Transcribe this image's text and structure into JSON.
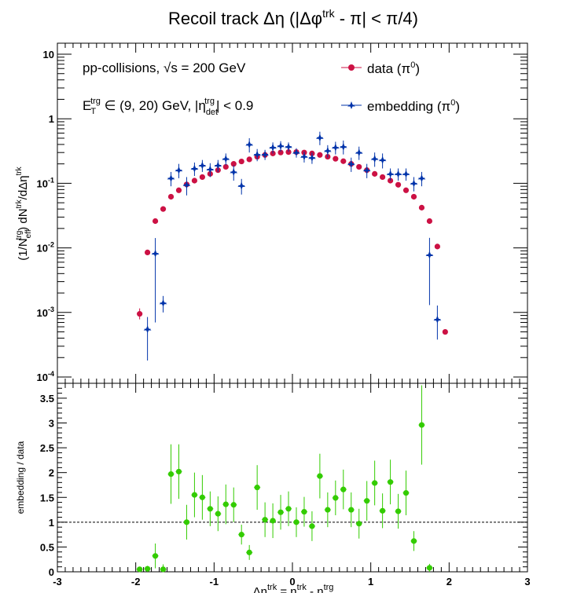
{
  "chart_data": [
    {
      "type": "scatter",
      "title": "Recoil track Δη (|Δφ^trk - π| < π/4)",
      "ylabel": "(1/N_eff^trg) dN^trk/dΔη^trk",
      "y_scale": "log",
      "xlim": [
        -3,
        3
      ],
      "ylim": [
        0.0001,
        15
      ],
      "y_ticks": [
        {
          "value": 10,
          "label": "10"
        },
        {
          "value": 1,
          "label": "1"
        },
        {
          "value": 0.1,
          "label": "10⁻¹"
        },
        {
          "value": 0.01,
          "label": "10⁻²"
        },
        {
          "value": 0.001,
          "label": "10⁻³"
        },
        {
          "value": 0.0001,
          "label": "10⁻⁴"
        }
      ],
      "annotations": {
        "line1": "pp-collisions, √s = 200 GeV",
        "line2": "E_T^trg ∈ (9, 20) GeV, |η_det^trg| < 0.9"
      },
      "legend": {
        "position": "top-right"
      },
      "series": [
        {
          "name": "data (π⁰)",
          "color": "#cc1144",
          "marker": "circle",
          "x": [
            -1.95,
            -1.85,
            -1.75,
            -1.65,
            -1.55,
            -1.45,
            -1.35,
            -1.25,
            -1.15,
            -1.05,
            -0.95,
            -0.85,
            -0.75,
            -0.65,
            -0.55,
            -0.45,
            -0.35,
            -0.25,
            -0.15,
            -0.05,
            0.05,
            0.15,
            0.25,
            0.35,
            0.45,
            0.55,
            0.65,
            0.75,
            0.85,
            0.95,
            1.05,
            1.15,
            1.25,
            1.35,
            1.45,
            1.55,
            1.65,
            1.75,
            1.85,
            1.95
          ],
          "y": [
            0.00095,
            0.0085,
            0.026,
            0.04,
            0.062,
            0.078,
            0.096,
            0.11,
            0.125,
            0.14,
            0.16,
            0.18,
            0.2,
            0.218,
            0.235,
            0.258,
            0.275,
            0.29,
            0.3,
            0.305,
            0.305,
            0.3,
            0.29,
            0.275,
            0.258,
            0.24,
            0.22,
            0.2,
            0.18,
            0.16,
            0.14,
            0.125,
            0.11,
            0.095,
            0.078,
            0.062,
            0.042,
            0.026,
            0.0105,
            0.0005
          ]
        },
        {
          "name": "embedding (π⁰)",
          "color": "#0033aa",
          "marker": "star",
          "x": [
            -1.85,
            -1.75,
            -1.65,
            -1.55,
            -1.45,
            -1.35,
            -1.25,
            -1.15,
            -1.05,
            -0.95,
            -0.85,
            -0.75,
            -0.65,
            -0.55,
            -0.45,
            -0.35,
            -0.25,
            -0.15,
            -0.05,
            0.05,
            0.15,
            0.25,
            0.35,
            0.45,
            0.55,
            0.65,
            0.75,
            0.85,
            0.95,
            1.05,
            1.15,
            1.25,
            1.35,
            1.45,
            1.55,
            1.65,
            1.75,
            1.85
          ],
          "y": [
            0.00055,
            0.0082,
            0.0014,
            0.12,
            0.16,
            0.095,
            0.17,
            0.19,
            0.165,
            0.19,
            0.24,
            0.15,
            0.092,
            0.4,
            0.28,
            0.28,
            0.36,
            0.38,
            0.37,
            0.3,
            0.26,
            0.25,
            0.51,
            0.32,
            0.36,
            0.37,
            0.2,
            0.3,
            0.16,
            0.24,
            0.23,
            0.14,
            0.14,
            0.14,
            0.1,
            0.12,
            0.0078,
            0.00078
          ],
          "yerr_low": [
            0.00037,
            0.0075,
            0.0004,
            0.03,
            0.04,
            0.03,
            0.04,
            0.04,
            0.04,
            0.04,
            0.05,
            0.04,
            0.025,
            0.1,
            0.06,
            0.05,
            0.07,
            0.07,
            0.06,
            0.05,
            0.05,
            0.05,
            0.12,
            0.07,
            0.08,
            0.09,
            0.05,
            0.07,
            0.04,
            0.06,
            0.06,
            0.03,
            0.03,
            0.03,
            0.025,
            0.03,
            0.0065,
            0.0004
          ],
          "yerr_high": [
            0.0003,
            0.006,
            0.0004,
            0.03,
            0.04,
            0.03,
            0.04,
            0.04,
            0.04,
            0.04,
            0.05,
            0.04,
            0.025,
            0.1,
            0.06,
            0.05,
            0.07,
            0.07,
            0.06,
            0.05,
            0.05,
            0.05,
            0.12,
            0.07,
            0.08,
            0.09,
            0.05,
            0.07,
            0.04,
            0.06,
            0.06,
            0.03,
            0.03,
            0.03,
            0.025,
            0.03,
            0.0065,
            0.0005
          ]
        }
      ]
    },
    {
      "type": "scatter",
      "xlabel": "Δη^trk = η^trk - η^trg",
      "ylabel": "embedding / data",
      "xlim": [
        -3,
        3
      ],
      "ylim": [
        0,
        3.8
      ],
      "x_ticks": [
        -3,
        -2,
        -1,
        0,
        1,
        2,
        3
      ],
      "y_ticks": [
        0,
        0.5,
        1,
        1.5,
        2,
        2.5,
        3,
        3.5
      ],
      "reference_line": 1,
      "series": [
        {
          "name": "ratio",
          "color": "#33cc00",
          "marker": "circle",
          "x": [
            -1.95,
            -1.85,
            -1.75,
            -1.65,
            -1.55,
            -1.45,
            -1.35,
            -1.25,
            -1.15,
            -1.05,
            -0.95,
            -0.85,
            -0.75,
            -0.65,
            -0.55,
            -0.45,
            -0.35,
            -0.25,
            -0.15,
            -0.05,
            0.05,
            0.15,
            0.25,
            0.35,
            0.45,
            0.55,
            0.65,
            0.75,
            0.85,
            0.95,
            1.05,
            1.15,
            1.25,
            1.35,
            1.45,
            1.55,
            1.65,
            1.75
          ],
          "y": [
            0.05,
            0.06,
            0.32,
            0.05,
            1.97,
            2.02,
            1.0,
            1.55,
            1.5,
            1.27,
            1.17,
            1.36,
            1.35,
            0.75,
            0.39,
            1.7,
            1.05,
            1.03,
            1.2,
            1.27,
            1.0,
            1.21,
            0.92,
            1.93,
            1.25,
            1.49,
            1.66,
            1.25,
            0.97,
            1.43,
            1.79,
            1.23,
            1.81,
            1.22,
            1.59,
            0.62,
            2.96,
            0.08
          ],
          "yerr": [
            0.05,
            0.06,
            0.25,
            0.1,
            0.6,
            0.55,
            0.35,
            0.45,
            0.45,
            0.35,
            0.35,
            0.4,
            0.35,
            0.2,
            0.15,
            0.45,
            0.35,
            0.35,
            0.35,
            0.35,
            0.3,
            0.3,
            0.3,
            0.45,
            0.35,
            0.35,
            0.4,
            0.35,
            0.3,
            0.4,
            0.45,
            0.35,
            0.45,
            0.35,
            0.45,
            0.2,
            0.8,
            0.08
          ]
        }
      ]
    }
  ]
}
